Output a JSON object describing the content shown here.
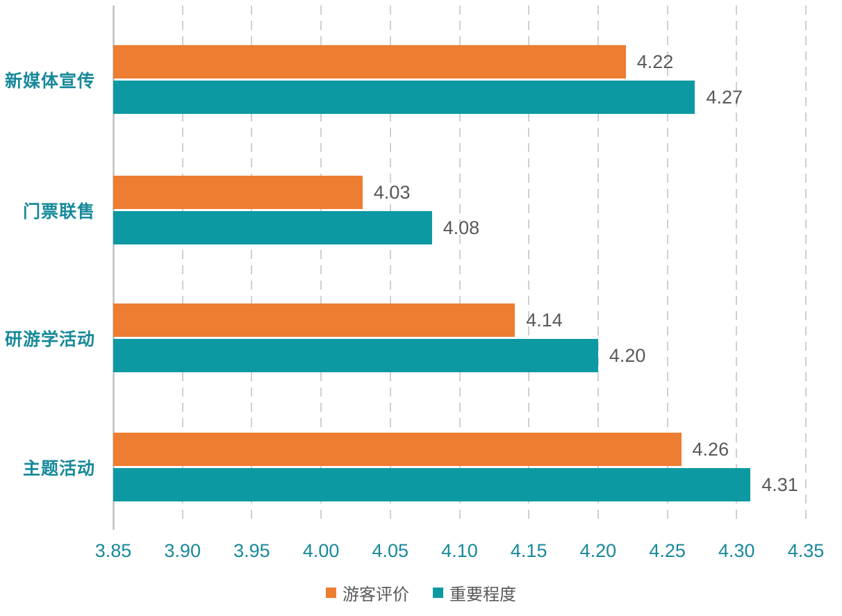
{
  "chart_data": {
    "type": "bar",
    "orientation": "horizontal",
    "title": "",
    "xlabel": "",
    "ylabel": "",
    "categories": [
      "新媒体宣传",
      "门票联售",
      "研游学活动",
      "主题活动"
    ],
    "series": [
      {
        "name": "游客评价",
        "color": "#ED7D31",
        "values": [
          4.22,
          4.03,
          4.14,
          4.26
        ]
      },
      {
        "name": "重要程度",
        "color": "#0D99A2",
        "values": [
          4.27,
          4.08,
          4.2,
          4.31
        ]
      }
    ],
    "xlim": [
      3.85,
      4.35
    ],
    "x_ticks": [
      "3.85",
      "3.90",
      "3.95",
      "4.00",
      "4.05",
      "4.10",
      "4.15",
      "4.20",
      "4.25",
      "4.30",
      "4.35"
    ],
    "value_label_decimals": 2,
    "grid": "vertical-dashed",
    "legend_position": "bottom"
  },
  "style": {
    "background": "#FFFFFF",
    "axis_text_color": "#17899A",
    "category_text_color": "#17899A",
    "value_text_color": "#595959",
    "legend_text_color": "#595959",
    "gridline_color": "#CFCFCF",
    "axis_line_color": "#C9C9C9"
  }
}
